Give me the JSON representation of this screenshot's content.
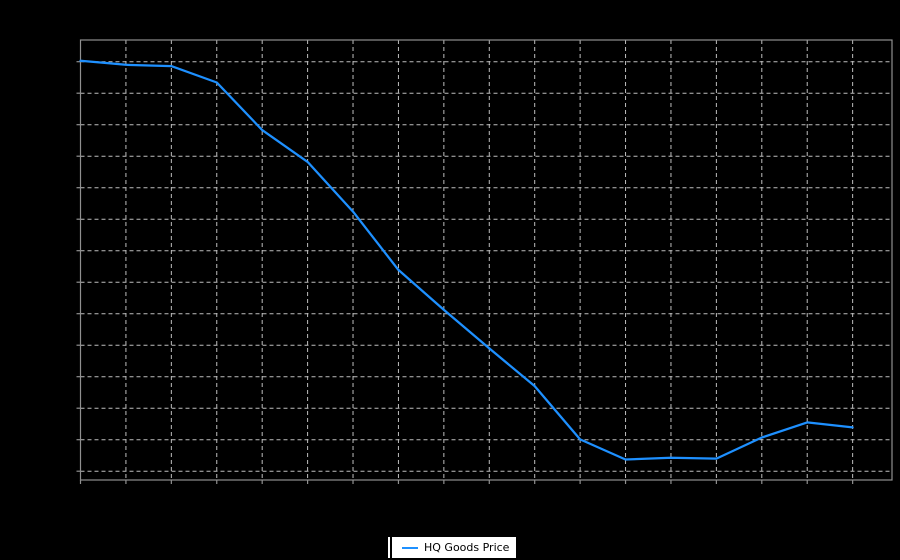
{
  "chart_data": {
    "type": "line",
    "title": "",
    "xlabel": "",
    "ylabel": "",
    "note": "Axis tick labels are not visible in the image; y values are estimated in gridline units (1 unit = 1 horizontal gridline spacing, 0 = bottom gridline). x is the data-point index, one point per vertical gridline.",
    "x": [
      0,
      1,
      2,
      3,
      4,
      5,
      6,
      7,
      8,
      9,
      10,
      11,
      12,
      13,
      14,
      15,
      16,
      17
    ],
    "series": [
      {
        "name": "HQ Goods Price",
        "color": "#1E90FF",
        "values": [
          13.03,
          12.9,
          12.86,
          12.34,
          10.83,
          9.82,
          8.24,
          6.39,
          5.12,
          3.9,
          2.7,
          1.01,
          0.37,
          0.43,
          0.4,
          1.07,
          1.55,
          1.39
        ]
      }
    ],
    "xlim": [
      0,
      17.87
    ],
    "ylim": [
      -0.28,
      13.69
    ],
    "grid": true,
    "grid_style": "dashed",
    "tick_labels_visible": false,
    "legend_position": "bottom-center"
  },
  "legend": {
    "label": "HQ Goods Price"
  },
  "colors": {
    "background": "#000000",
    "plot_background": "#000000",
    "grid": "#BEBEBE",
    "frame": "#909090",
    "tick": "#909090",
    "line": "#1E90FF",
    "legend_background": "#FFFFFF",
    "legend_border": "#000000",
    "legend_text": "#000000"
  }
}
